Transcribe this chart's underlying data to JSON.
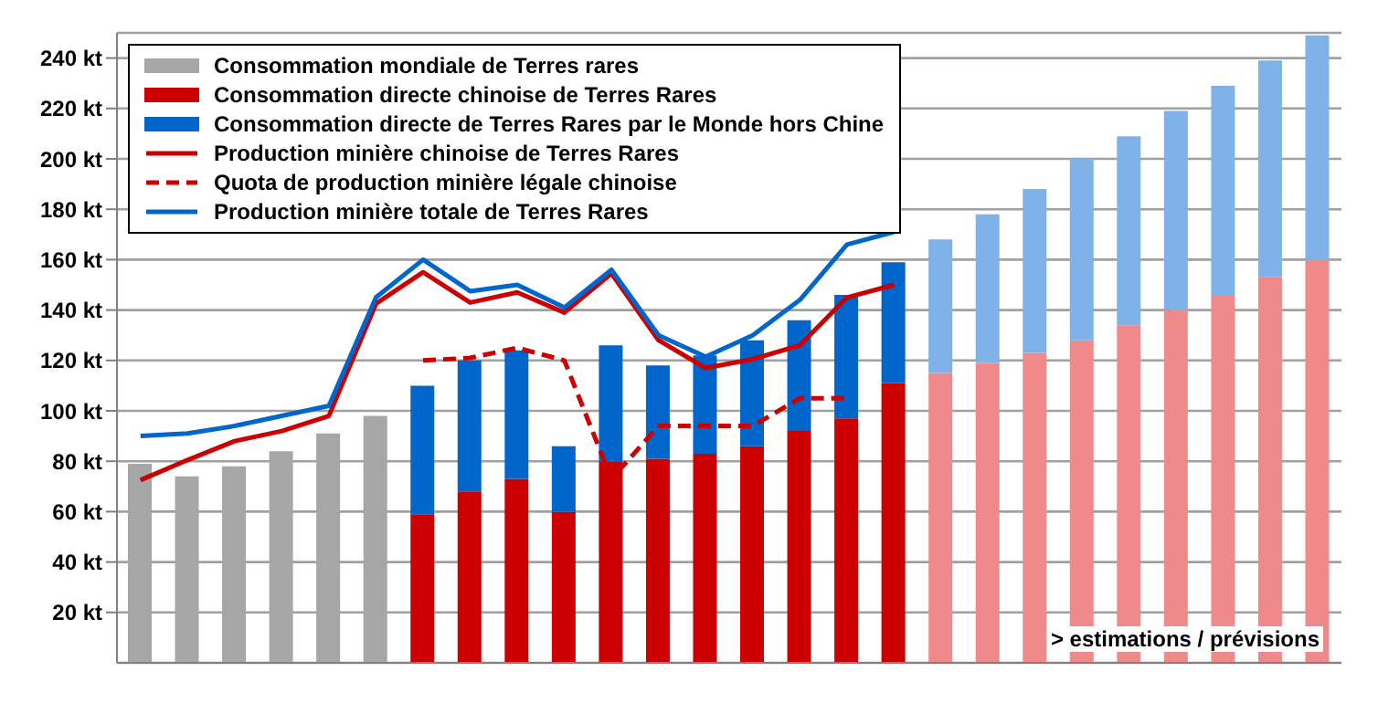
{
  "chart_data": {
    "type": "bar",
    "stacked": true,
    "categories": [
      null,
      null,
      null,
      null,
      null,
      null,
      null,
      null,
      null,
      null,
      null,
      null,
      null,
      null,
      null,
      null,
      null,
      null,
      null,
      null,
      null,
      null,
      null,
      null,
      null,
      null
    ],
    "ylim": [
      0,
      250
    ],
    "yticks": [
      {
        "value": 20,
        "label": "20 kt"
      },
      {
        "value": 40,
        "label": "40 kt"
      },
      {
        "value": 60,
        "label": "60 kt"
      },
      {
        "value": 80,
        "label": "80 kt"
      },
      {
        "value": 100,
        "label": "100 kt"
      },
      {
        "value": 120,
        "label": "120 kt"
      },
      {
        "value": 140,
        "label": "140 kt"
      },
      {
        "value": 160,
        "label": "160 kt"
      },
      {
        "value": 180,
        "label": "180 kt"
      },
      {
        "value": 200,
        "label": "200 kt"
      },
      {
        "value": 220,
        "label": "220 kt"
      },
      {
        "value": 240,
        "label": "240 kt"
      }
    ],
    "tick_labels": "y",
    "grid": "y",
    "legend": "top left",
    "marker": "none",
    "series": [
      {
        "name": "Consommation mondiale de Terres rares",
        "color": "#a6a6a6",
        "values": [
          79,
          74,
          78,
          84,
          91,
          98,
          null,
          null,
          null,
          null,
          null,
          null,
          null,
          null,
          null,
          null,
          null,
          null,
          null,
          null,
          null,
          null,
          null,
          null,
          null,
          null
        ]
      },
      {
        "name": "Consommation directe chinoise de Terres Rares",
        "color": "#cc0000",
        "values": [
          null,
          null,
          null,
          null,
          null,
          null,
          59,
          68,
          73,
          60,
          80,
          81,
          83,
          86,
          92,
          97,
          111,
          null,
          null,
          null,
          null,
          null,
          null,
          null,
          null,
          null
        ]
      },
      {
        "name": "Consommation directe de Terres Rares par le Monde hors Chine",
        "color": "#0066cc",
        "values": [
          null,
          null,
          null,
          null,
          null,
          null,
          51,
          52,
          51,
          26,
          46,
          37,
          39,
          42,
          44,
          49,
          48,
          null,
          null,
          null,
          null,
          null,
          null,
          null,
          null,
          null
        ]
      },
      {
        "color": "#f08a8a",
        "values": [
          null,
          null,
          null,
          null,
          null,
          null,
          null,
          null,
          null,
          null,
          null,
          null,
          null,
          null,
          null,
          null,
          null,
          115,
          119,
          123,
          128,
          134,
          140,
          146,
          153,
          160
        ]
      },
      {
        "color": "#7fb2e8",
        "values": [
          null,
          null,
          null,
          null,
          null,
          null,
          null,
          null,
          null,
          null,
          null,
          null,
          null,
          null,
          null,
          null,
          null,
          53,
          59,
          65,
          72,
          75,
          79,
          83,
          86,
          89
        ]
      },
      {
        "type": "line",
        "name": "Production minière chinoise de Terres Rares",
        "color": "#cc0000",
        "line_style": "solid",
        "values": [
          72.5,
          80.5,
          88,
          92,
          98,
          142.5,
          155,
          143,
          147,
          139,
          154.5,
          128,
          117,
          120.5,
          126,
          145,
          150,
          null,
          null,
          null,
          null,
          null,
          null,
          null,
          null,
          null
        ]
      },
      {
        "type": "line",
        "name": "Quota de production minière légale chinoise",
        "color": "#cc0000",
        "line_style": "dashed",
        "values": [
          null,
          null,
          null,
          null,
          null,
          null,
          120,
          121,
          125,
          120,
          73,
          94,
          94,
          94,
          105,
          105,
          null,
          null,
          null,
          null,
          null,
          null,
          null,
          null,
          null,
          null
        ]
      },
      {
        "type": "line",
        "name": "Production minière totale de Terres Rares",
        "color": "#0066cc",
        "line_style": "solid",
        "values": [
          90,
          91,
          94,
          98,
          102,
          145,
          160,
          147.5,
          150,
          141,
          156,
          130,
          121.5,
          130,
          144,
          166,
          171,
          null,
          null,
          null,
          null,
          null,
          null,
          null,
          null,
          null
        ]
      }
    ],
    "annotations": [
      "> estimations / prévisions"
    ]
  }
}
